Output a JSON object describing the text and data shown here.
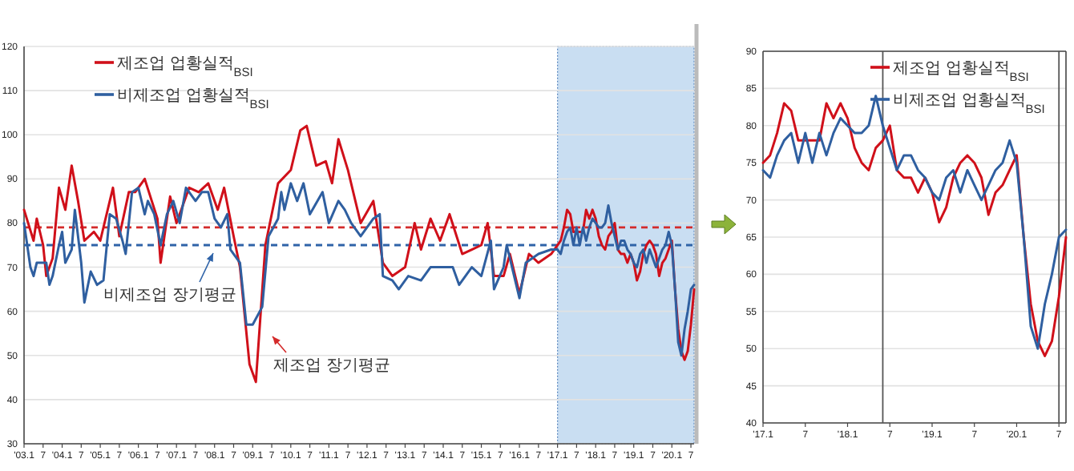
{
  "chart_data": [
    {
      "type": "line",
      "xlim": [
        "2003-01",
        "2020-08"
      ],
      "ylim": [
        30,
        120
      ],
      "yticks": [
        30,
        40,
        50,
        60,
        70,
        80,
        90,
        100,
        110,
        120
      ],
      "xticks": [
        {
          "value": "2003-01",
          "label": "'03.1"
        },
        {
          "value": "2003-07",
          "label": "7"
        },
        {
          "value": "2004-01",
          "label": "'04.1"
        },
        {
          "value": "2004-07",
          "label": "7"
        },
        {
          "value": "2005-01",
          "label": "'05.1"
        },
        {
          "value": "2005-07",
          "label": "7"
        },
        {
          "value": "2006-01",
          "label": "'06.1"
        },
        {
          "value": "2006-07",
          "label": "7"
        },
        {
          "value": "2007-01",
          "label": "'07.1"
        },
        {
          "value": "2007-07",
          "label": "7"
        },
        {
          "value": "2008-01",
          "label": "'08.1"
        },
        {
          "value": "2008-07",
          "label": "7"
        },
        {
          "value": "2009-01",
          "label": "'09.1"
        },
        {
          "value": "2009-07",
          "label": "7"
        },
        {
          "value": "2010-01",
          "label": "'10.1"
        },
        {
          "value": "2010-07",
          "label": "7"
        },
        {
          "value": "2011-01",
          "label": "'11.1"
        },
        {
          "value": "2011-07",
          "label": "7"
        },
        {
          "value": "2012-01",
          "label": "'12.1"
        },
        {
          "value": "2012-07",
          "label": "7"
        },
        {
          "value": "2013-01",
          "label": "'13.1"
        },
        {
          "value": "2013-07",
          "label": "7"
        },
        {
          "value": "2014-01",
          "label": "'14.1"
        },
        {
          "value": "2014-07",
          "label": "7"
        },
        {
          "value": "2015-01",
          "label": "'15.1"
        },
        {
          "value": "2015-07",
          "label": "7"
        },
        {
          "value": "2016-01",
          "label": "'16.1"
        },
        {
          "value": "2016-07",
          "label": "7"
        },
        {
          "value": "2017-01",
          "label": "'17.1"
        },
        {
          "value": "2017-07",
          "label": "7"
        },
        {
          "value": "2018-01",
          "label": "'18.1"
        },
        {
          "value": "2018-07",
          "label": "7"
        },
        {
          "value": "2019-01",
          "label": "'19.1"
        },
        {
          "value": "2019-07",
          "label": "7"
        },
        {
          "value": "2020-01",
          "label": "'20.1"
        },
        {
          "value": "2020-07",
          "label": "7"
        }
      ],
      "grid": "y",
      "legend": "top left",
      "ref_lines": [
        {
          "axis": "y",
          "value": 79,
          "color": "#d42a2a",
          "line_style": "dashed"
        },
        {
          "axis": "y",
          "value": 75,
          "color": "#2f63a8",
          "line_style": "dashed"
        }
      ],
      "annotations": [
        "제조업 장기평균",
        "비제조업 장기평균"
      ],
      "bands": [
        {
          "axis": "x",
          "from": "2017-01",
          "to": "2020-08",
          "color": "#c9def2"
        }
      ],
      "series": [
        {
          "name": "제조업 업황실적$_{BSI}$",
          "color": "#d0101a",
          "x": [
            "2003-01",
            "2003-04",
            "2003-05",
            "2003-07",
            "2003-08",
            "2003-10",
            "2003-12",
            "2004-02",
            "2004-04",
            "2004-06",
            "2004-08",
            "2004-11",
            "2005-01",
            "2005-05",
            "2005-07",
            "2005-10",
            "2005-12",
            "2006-03",
            "2006-07",
            "2006-08",
            "2006-11",
            "2007-01",
            "2007-05",
            "2007-08",
            "2007-11",
            "2008-02",
            "2008-04",
            "2008-07",
            "2008-09",
            "2008-12",
            "2009-02",
            "2009-05",
            "2009-09",
            "2010-01",
            "2010-04",
            "2010-06",
            "2010-09",
            "2010-12",
            "2011-02",
            "2011-04",
            "2011-07",
            "2011-11",
            "2012-03",
            "2012-06",
            "2012-09",
            "2013-01",
            "2013-04",
            "2013-06",
            "2013-09",
            "2013-12",
            "2014-03",
            "2014-07",
            "2014-10",
            "2015-01",
            "2015-03",
            "2015-05",
            "2015-08",
            "2015-10",
            "2016-01",
            "2016-04",
            "2016-07",
            "2016-11",
            "2017-01",
            "2017-02",
            "2017-03",
            "2017-04",
            "2017-05",
            "2017-06",
            "2017-07",
            "2017-08",
            "2017-09",
            "2017-10",
            "2017-11",
            "2017-12",
            "2018-01",
            "2018-02",
            "2018-03",
            "2018-04",
            "2018-05",
            "2018-06",
            "2018-07",
            "2018-08",
            "2018-09",
            "2018-10",
            "2018-11",
            "2018-12",
            "2019-01",
            "2019-02",
            "2019-03",
            "2019-04",
            "2019-05",
            "2019-06",
            "2019-07",
            "2019-08",
            "2019-09",
            "2019-10",
            "2019-11",
            "2019-12",
            "2020-01",
            "2020-02",
            "2020-03",
            "2020-04",
            "2020-05",
            "2020-06",
            "2020-07",
            "2020-08"
          ],
          "values": [
            83,
            76,
            81,
            75,
            68,
            72,
            88,
            83,
            93,
            85,
            76,
            78,
            76,
            88,
            77,
            87,
            87,
            90,
            81,
            71,
            86,
            80,
            88,
            87,
            89,
            83,
            88,
            77,
            70,
            48,
            44,
            75,
            89,
            92,
            101,
            102,
            93,
            94,
            89,
            99,
            92,
            80,
            85,
            71,
            68,
            70,
            80,
            74,
            81,
            76,
            82,
            73,
            74,
            75,
            80,
            68,
            68,
            73,
            64,
            73,
            71,
            73,
            75,
            76,
            79,
            83,
            82,
            78,
            78,
            78,
            78,
            83,
            81,
            83,
            81,
            77,
            75,
            74,
            77,
            78,
            80,
            74,
            73,
            73,
            71,
            73,
            71,
            67,
            69,
            73,
            75,
            76,
            75,
            73,
            68,
            71,
            72,
            74,
            76,
            65,
            56,
            51,
            49,
            51,
            57,
            65
          ]
        },
        {
          "name": "비제조업 업황실적$_{BSI}$",
          "color": "#2f5fa0",
          "x": [
            "2003-01",
            "2003-03",
            "2003-04",
            "2003-05",
            "2003-08",
            "2003-09",
            "2003-10",
            "2003-12",
            "2004-01",
            "2004-02",
            "2004-04",
            "2004-05",
            "2004-07",
            "2004-08",
            "2004-10",
            "2004-12",
            "2005-02",
            "2005-04",
            "2005-06",
            "2005-08",
            "2005-09",
            "2005-11",
            "2006-01",
            "2006-03",
            "2006-04",
            "2006-06",
            "2006-08",
            "2006-10",
            "2006-12",
            "2007-02",
            "2007-04",
            "2007-07",
            "2007-09",
            "2007-11",
            "2008-01",
            "2008-03",
            "2008-05",
            "2008-06",
            "2008-09",
            "2008-11",
            "2009-01",
            "2009-04",
            "2009-06",
            "2009-09",
            "2009-10",
            "2009-11",
            "2010-01",
            "2010-03",
            "2010-05",
            "2010-07",
            "2010-11",
            "2011-01",
            "2011-04",
            "2011-06",
            "2011-08",
            "2011-11",
            "2012-03",
            "2012-05",
            "2012-06",
            "2012-09",
            "2012-11",
            "2013-02",
            "2013-06",
            "2013-09",
            "2013-12",
            "2014-04",
            "2014-06",
            "2014-10",
            "2015-01",
            "2015-04",
            "2015-05",
            "2015-08",
            "2015-09",
            "2015-11",
            "2016-01",
            "2016-03",
            "2016-07",
            "2016-11",
            "2017-01",
            "2017-02",
            "2017-03",
            "2017-04",
            "2017-05",
            "2017-06",
            "2017-07",
            "2017-08",
            "2017-09",
            "2017-10",
            "2017-11",
            "2017-12",
            "2018-01",
            "2018-02",
            "2018-03",
            "2018-04",
            "2018-05",
            "2018-06",
            "2018-07",
            "2018-08",
            "2018-09",
            "2018-10",
            "2018-11",
            "2018-12",
            "2019-01",
            "2019-02",
            "2019-03",
            "2019-04",
            "2019-05",
            "2019-06",
            "2019-07",
            "2019-08",
            "2019-09",
            "2019-10",
            "2019-11",
            "2019-12",
            "2020-01",
            "2020-02",
            "2020-03",
            "2020-04",
            "2020-05",
            "2020-06",
            "2020-07",
            "2020-08"
          ],
          "values": [
            80,
            70,
            68,
            71,
            71,
            66,
            68,
            75,
            78,
            71,
            74,
            83,
            71,
            62,
            69,
            66,
            67,
            82,
            81,
            76,
            73,
            87,
            88,
            82,
            85,
            82,
            75,
            82,
            85,
            80,
            88,
            85,
            87,
            87,
            81,
            79,
            82,
            74,
            71,
            57,
            57,
            61,
            77,
            81,
            87,
            83,
            89,
            85,
            89,
            82,
            87,
            80,
            85,
            83,
            80,
            77,
            81,
            82,
            68,
            67,
            65,
            68,
            67,
            70,
            70,
            70,
            66,
            70,
            68,
            76,
            65,
            70,
            75,
            69,
            63,
            71,
            73,
            74,
            74,
            73,
            76,
            78,
            79,
            75,
            79,
            75,
            79,
            76,
            79,
            81,
            80,
            79,
            79,
            80,
            84,
            80,
            77,
            74,
            76,
            76,
            74,
            73,
            71,
            70,
            73,
            74,
            71,
            74,
            72,
            70,
            72,
            74,
            75,
            78,
            75,
            65,
            53,
            50,
            56,
            60,
            65,
            66
          ]
        }
      ]
    },
    {
      "type": "line",
      "xlim": [
        "2017-01",
        "2020-08"
      ],
      "ylim": [
        40,
        90
      ],
      "yticks": [
        40,
        45,
        50,
        55,
        60,
        65,
        70,
        75,
        80,
        85,
        90
      ],
      "xticks": [
        {
          "value": "2017-01",
          "label": "'17.1"
        },
        {
          "value": "2017-07",
          "label": "7"
        },
        {
          "value": "2018-01",
          "label": "'18.1"
        },
        {
          "value": "2018-07",
          "label": "7"
        },
        {
          "value": "2019-01",
          "label": "'19.1"
        },
        {
          "value": "2019-07",
          "label": "7"
        },
        {
          "value": "2020-01",
          "label": "'20.1"
        },
        {
          "value": "2020-07",
          "label": "7"
        }
      ],
      "grid": "y",
      "legend": "top right",
      "x": [
        "2017-01",
        "2017-02",
        "2017-03",
        "2017-04",
        "2017-05",
        "2017-06",
        "2017-07",
        "2017-08",
        "2017-09",
        "2017-10",
        "2017-11",
        "2017-12",
        "2018-01",
        "2018-02",
        "2018-03",
        "2018-04",
        "2018-05",
        "2018-06",
        "2018-07",
        "2018-08",
        "2018-09",
        "2018-10",
        "2018-11",
        "2018-12",
        "2019-01",
        "2019-02",
        "2019-03",
        "2019-04",
        "2019-05",
        "2019-06",
        "2019-07",
        "2019-08",
        "2019-09",
        "2019-10",
        "2019-11",
        "2019-12",
        "2020-01",
        "2020-02",
        "2020-03",
        "2020-04",
        "2020-05",
        "2020-06",
        "2020-07",
        "2020-08"
      ],
      "ref_lines": [
        {
          "axis": "x",
          "value": "2018-06",
          "color": "#555555",
          "line_style": "solid"
        },
        {
          "axis": "x",
          "value": "2020-07",
          "color": "#555555",
          "line_style": "solid"
        }
      ],
      "series": [
        {
          "name": "제조업 업황실적$_{BSI}$",
          "color": "#d0101a",
          "values": [
            75,
            76,
            79,
            83,
            82,
            78,
            78,
            78,
            78,
            83,
            81,
            83,
            81,
            77,
            75,
            74,
            77,
            78,
            80,
            74,
            73,
            73,
            71,
            73,
            71,
            67,
            69,
            73,
            75,
            76,
            75,
            73,
            68,
            71,
            72,
            74,
            76,
            65,
            56,
            51,
            49,
            51,
            57,
            65
          ]
        },
        {
          "name": "비제조업 업황실적$_{BSI}$",
          "color": "#2f5fa0",
          "values": [
            74,
            73,
            76,
            78,
            79,
            75,
            79,
            75,
            79,
            76,
            79,
            81,
            80,
            79,
            79,
            80,
            84,
            80,
            77,
            74,
            76,
            76,
            74,
            73,
            71,
            70,
            73,
            74,
            71,
            74,
            72,
            70,
            72,
            74,
            75,
            78,
            75,
            65,
            53,
            50,
            56,
            60,
            65,
            66
          ]
        }
      ]
    }
  ]
}
